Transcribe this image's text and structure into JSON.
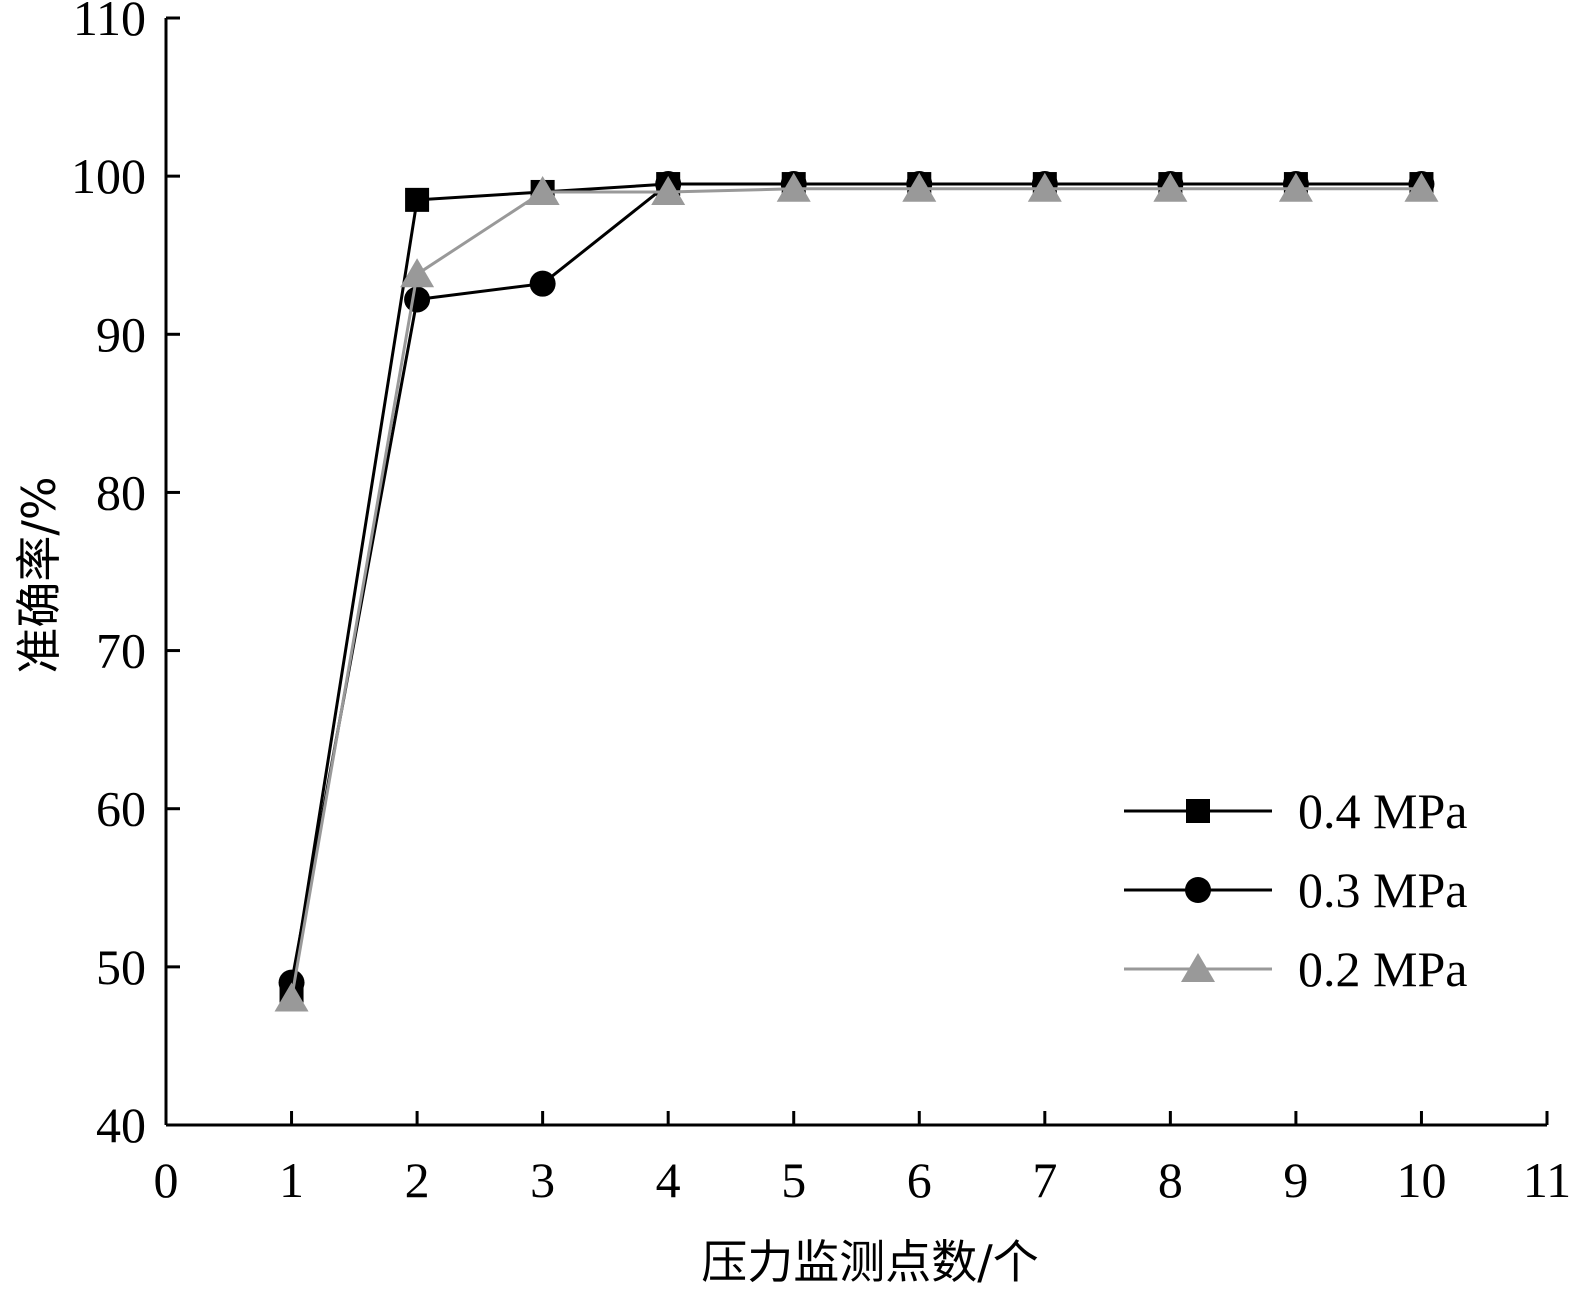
{
  "chart_data": {
    "type": "line",
    "title": "",
    "xlabel": "压力监测点数/个",
    "ylabel": "准确率/%",
    "xlim": [
      0,
      11
    ],
    "ylim": [
      40,
      110
    ],
    "xticks": [
      "0",
      "1",
      "2",
      "3",
      "4",
      "5",
      "6",
      "7",
      "8",
      "9",
      "10",
      "11"
    ],
    "yticks": [
      "40",
      "50",
      "60",
      "70",
      "80",
      "90",
      "100",
      "110"
    ],
    "grid": false,
    "legend_position": "lower-right",
    "x": [
      1,
      2,
      3,
      4,
      5,
      6,
      7,
      8,
      9,
      10
    ],
    "series": [
      {
        "name": "0.4 MPa",
        "marker": "square",
        "color": "#000000",
        "values": [
          48.5,
          98.5,
          99.0,
          99.5,
          99.5,
          99.5,
          99.5,
          99.5,
          99.5,
          99.5
        ]
      },
      {
        "name": "0.3 MPa",
        "marker": "circle",
        "color": "#000000",
        "values": [
          49.0,
          92.2,
          93.2,
          99.5,
          99.5,
          99.5,
          99.5,
          99.5,
          99.5,
          99.5
        ]
      },
      {
        "name": "0.2 MPa",
        "marker": "triangle",
        "color": "#999999",
        "values": [
          48.0,
          93.8,
          99.0,
          99.0,
          99.2,
          99.2,
          99.2,
          99.2,
          99.2,
          99.2
        ]
      }
    ]
  }
}
